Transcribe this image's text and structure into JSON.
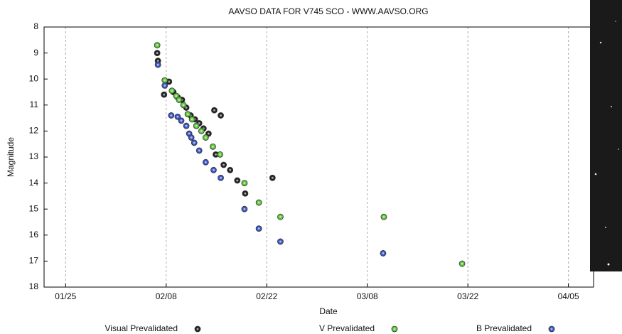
{
  "chart_data": {
    "type": "scatter",
    "title": "AAVSO DATA FOR V745 SCO - WWW.AAVSO.ORG",
    "x_label": "Date",
    "y_label": "Magnitude",
    "xlim": [
      22,
      98.5
    ],
    "xticks": [
      {
        "value": 25,
        "label": "01/25"
      },
      {
        "value": 39,
        "label": "02/08"
      },
      {
        "value": 53,
        "label": "02/22"
      },
      {
        "value": 67,
        "label": "03/08"
      },
      {
        "value": 81,
        "label": "03/22"
      },
      {
        "value": 95,
        "label": "04/05"
      }
    ],
    "ylim": [
      8,
      18
    ],
    "y_inverted": true,
    "yticks": [
      8,
      9,
      10,
      11,
      12,
      13,
      14,
      15,
      16,
      17,
      18
    ],
    "xgrid": true,
    "legend": "bottom",
    "series": [
      {
        "name": "Visual Prevalidated",
        "color": "#222222",
        "x": [
          37.75,
          37.85,
          38.7,
          39.4,
          40.0,
          40.6,
          41.2,
          41.8,
          42.4,
          43.0,
          43.6,
          44.2,
          44.9,
          45.7,
          46.6,
          45.9,
          47.0,
          47.9,
          48.9,
          50.0,
          53.8
        ],
        "values": [
          9.0,
          9.3,
          10.6,
          10.1,
          10.5,
          10.7,
          10.8,
          11.1,
          11.4,
          11.55,
          11.7,
          11.9,
          12.1,
          11.2,
          11.4,
          12.9,
          13.3,
          13.5,
          13.9,
          14.4,
          13.8
        ]
      },
      {
        "name": "V Prevalidated",
        "color": "#5cc43a",
        "x": [
          37.75,
          38.8,
          39.8,
          40.4,
          40.8,
          41.4,
          42.0,
          42.6,
          43.2,
          43.9,
          44.5,
          45.5,
          46.5,
          49.9,
          51.9,
          54.9,
          69.3,
          80.2
        ],
        "values": [
          8.7,
          10.05,
          10.45,
          10.65,
          10.8,
          11.0,
          11.35,
          11.55,
          11.8,
          12.0,
          12.25,
          12.6,
          12.9,
          14.0,
          14.75,
          15.3,
          15.3,
          17.1
        ]
      },
      {
        "name": "B Prevalidated",
        "color": "#3a55c4",
        "x": [
          37.85,
          38.8,
          39.7,
          40.6,
          41.1,
          41.8,
          42.2,
          42.5,
          42.9,
          43.6,
          44.5,
          45.6,
          46.6,
          49.9,
          51.9,
          54.9,
          69.2
        ],
        "values": [
          9.45,
          10.25,
          11.4,
          11.45,
          11.6,
          11.8,
          12.1,
          12.25,
          12.45,
          12.75,
          13.2,
          13.5,
          13.8,
          15.0,
          15.75,
          16.25,
          16.7
        ]
      }
    ]
  }
}
